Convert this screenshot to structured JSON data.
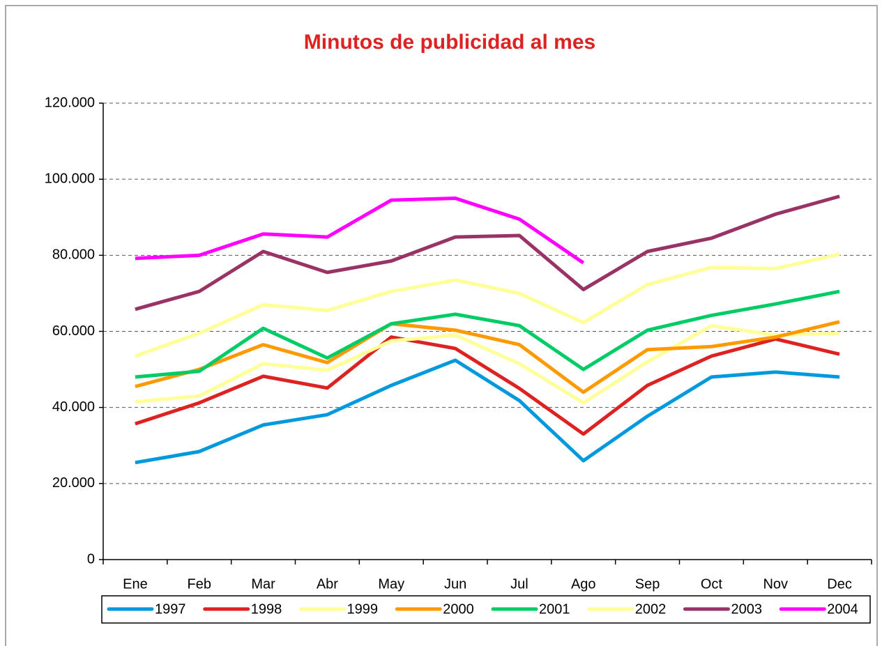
{
  "chart_data": {
    "type": "line",
    "title": "Minutos de publicidad al mes",
    "categories": [
      "Ene",
      "Feb",
      "Mar",
      "Abr",
      "May",
      "Jun",
      "Jul",
      "Ago",
      "Sep",
      "Oct",
      "Nov",
      "Dec"
    ],
    "series": [
      {
        "name": "1997",
        "color": "#0099dd",
        "values": [
          25500,
          28400,
          35400,
          38100,
          45800,
          52400,
          41800,
          26000,
          37700,
          48000,
          49300,
          48000
        ]
      },
      {
        "name": "1998",
        "color": "#dd2222",
        "values": [
          35700,
          41200,
          48200,
          45100,
          58500,
          55500,
          45000,
          33000,
          45800,
          53500,
          58000,
          54000
        ]
      },
      {
        "name": "1999",
        "color": "#ffff99",
        "values": [
          41500,
          43000,
          51500,
          49800,
          57500,
          59000,
          51500,
          41200,
          52000,
          61500,
          59000,
          59500
        ]
      },
      {
        "name": "2000",
        "color": "#ff9900",
        "values": [
          45500,
          50000,
          56500,
          51800,
          62000,
          60300,
          56500,
          44000,
          55200,
          56000,
          58500,
          62500
        ]
      },
      {
        "name": "2001",
        "color": "#00cc66",
        "values": [
          48000,
          49500,
          60800,
          53000,
          62000,
          64500,
          61500,
          50000,
          60300,
          64200,
          67200,
          70500
        ]
      },
      {
        "name": "2002",
        "color": "#ffff99",
        "values": [
          53500,
          59500,
          67000,
          65500,
          70500,
          73500,
          70000,
          62300,
          72300,
          76800,
          76500,
          80300
        ]
      },
      {
        "name": "2003",
        "color": "#993366",
        "values": [
          65800,
          70500,
          81000,
          75500,
          78500,
          84800,
          85200,
          71000,
          81000,
          84500,
          90800,
          95500
        ]
      },
      {
        "name": "2004",
        "color": "#ff00ff",
        "values": [
          79200,
          80000,
          85600,
          84800,
          94500,
          95000,
          89500,
          78000,
          null,
          null,
          null,
          null
        ]
      }
    ],
    "ylim": [
      0,
      120000
    ],
    "yticks": [
      0,
      {
        "value": 20000,
        "label": "20.000"
      },
      {
        "value": 40000,
        "label": "40.000"
      },
      {
        "value": 60000,
        "label": "60.000"
      },
      {
        "value": 80000,
        "label": "80.000"
      },
      {
        "value": 100000,
        "label": "100.000"
      },
      {
        "value": 120000,
        "label": "120.000"
      }
    ],
    "grid": true,
    "legend": "bottom"
  }
}
